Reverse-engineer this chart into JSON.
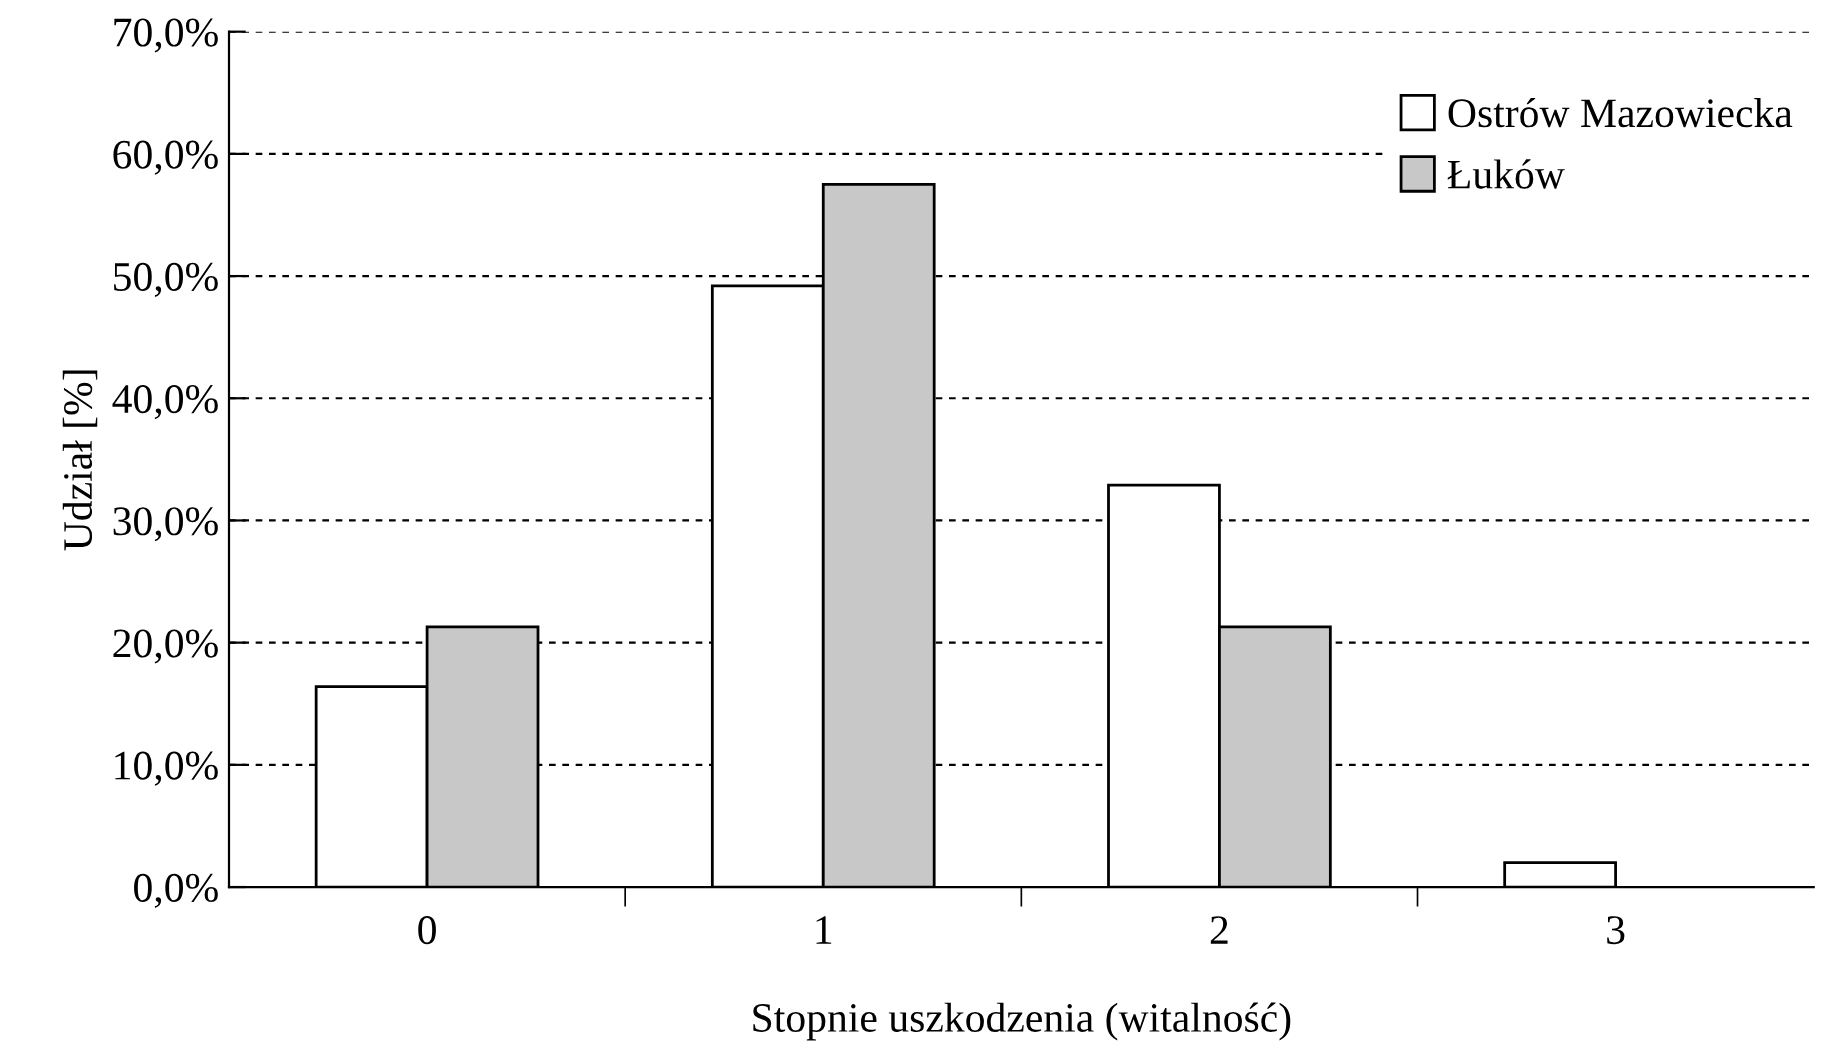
{
  "chart_data": {
    "type": "bar",
    "xlabel": "Stopnie uszkodzenia (witalność)",
    "ylabel": "Udział [%]",
    "categories": [
      "0",
      "1",
      "2",
      "3"
    ],
    "series": [
      {
        "name": "Ostrów Mazowiecka",
        "color": "#ffffff",
        "values": [
          16.4,
          49.2,
          32.9,
          2.0
        ]
      },
      {
        "name": "Łuków",
        "color": "#c8c8c8",
        "values": [
          21.3,
          57.5,
          21.3,
          0
        ]
      }
    ],
    "ylim": [
      0,
      70
    ],
    "yticks": [
      {
        "value": 0,
        "label": "0,0%"
      },
      {
        "value": 10,
        "label": "10,0%"
      },
      {
        "value": 20,
        "label": "20,0%"
      },
      {
        "value": 30,
        "label": "30,0%"
      },
      {
        "value": 40,
        "label": "40,0%"
      },
      {
        "value": 50,
        "label": "50,0%"
      },
      {
        "value": 60,
        "label": "60,0%"
      },
      {
        "value": 70,
        "label": "70,0%"
      }
    ],
    "grid": "y",
    "legend": "top right"
  }
}
